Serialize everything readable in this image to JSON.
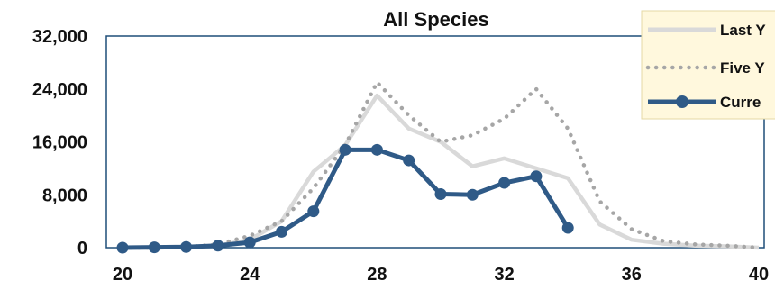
{
  "chart_data": {
    "type": "line",
    "title": "All Species",
    "xlabel": "",
    "ylabel": "",
    "xlim": [
      20,
      40
    ],
    "ylim": [
      0,
      32000
    ],
    "x_ticks": [
      "20",
      "24",
      "28",
      "32",
      "36",
      "40"
    ],
    "y_ticks": [
      "0",
      "8,000",
      "16,000",
      "24,000",
      "32,000"
    ],
    "grid": false,
    "legend_position": "top-right",
    "series": [
      {
        "name": "Last Y",
        "style": "solid",
        "color": "#d9d9d9",
        "x": [
          20,
          21,
          22,
          23,
          24,
          25,
          26,
          27,
          28,
          29,
          30,
          31,
          32,
          33,
          34,
          35,
          36,
          37,
          38,
          39,
          40
        ],
        "y": [
          0,
          0,
          100,
          300,
          1200,
          4000,
          11500,
          15500,
          23000,
          18000,
          16000,
          12300,
          13500,
          12000,
          10500,
          3500,
          1200,
          600,
          300,
          200,
          0
        ]
      },
      {
        "name": "Five Y",
        "style": "dotted",
        "color": "#a6a6a6",
        "x": [
          20,
          21,
          22,
          23,
          24,
          25,
          26,
          27,
          28,
          29,
          30,
          31,
          32,
          33,
          34,
          35,
          36,
          37,
          38,
          39,
          40
        ],
        "y": [
          0,
          0,
          100,
          500,
          1800,
          4000,
          9000,
          15500,
          25000,
          20000,
          16000,
          17000,
          19500,
          24000,
          18000,
          7000,
          2800,
          1000,
          500,
          300,
          0
        ]
      },
      {
        "name": "Curre",
        "style": "solid-markers",
        "color": "#2f5a87",
        "x": [
          20,
          21,
          22,
          23,
          24,
          25,
          26,
          27,
          28,
          29,
          30,
          31,
          32,
          33,
          34
        ],
        "y": [
          0,
          50,
          100,
          300,
          800,
          2400,
          5500,
          14800,
          14800,
          13200,
          8100,
          8000,
          9800,
          10800,
          3000
        ]
      }
    ]
  }
}
